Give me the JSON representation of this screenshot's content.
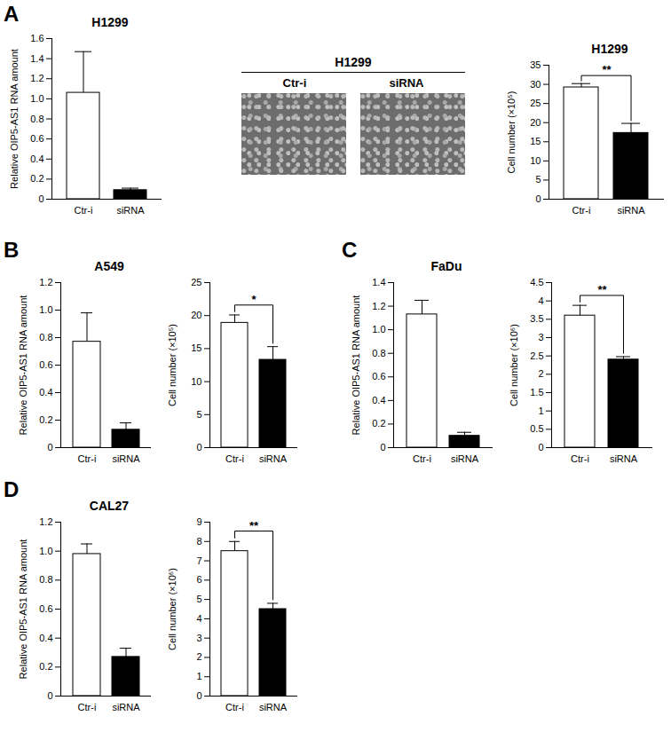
{
  "images": {
    "title": "H1299",
    "labels": [
      "Ctr-i",
      "siRNA"
    ]
  },
  "chart_data": [
    {
      "panel": "A",
      "type": "bar",
      "title": "H1299",
      "categories": [
        "Ctr-i",
        "siRNA"
      ],
      "values": [
        1.06,
        0.09
      ],
      "errors": [
        0.41,
        0.02
      ],
      "colors": [
        "#ffffff",
        "#000000"
      ],
      "y_label": "Relative OIP5-AS1 RNA amount",
      "ylim": [
        0,
        1.6
      ],
      "yticks": [
        0,
        0.2,
        0.4,
        0.6,
        0.8,
        {
          "value": 1,
          "label": "1.0"
        },
        1.2,
        1.4,
        1.6
      ]
    },
    {
      "type": "bar",
      "title": "H1299",
      "categories": [
        "Ctr-i",
        "siRNA"
      ],
      "values": [
        29.2,
        17.3
      ],
      "errors": [
        1.0,
        2.5
      ],
      "colors": [
        "#ffffff",
        "#000000"
      ],
      "y_label": "Cell number (×10⁵)",
      "ylim": [
        0,
        35
      ],
      "yticks": [
        0,
        5,
        10,
        15,
        20,
        25,
        30,
        35
      ],
      "significance": "**"
    },
    {
      "panel": "B",
      "type": "bar",
      "title": "A549",
      "categories": [
        "Ctr-i",
        "siRNA"
      ],
      "values": [
        0.77,
        0.13
      ],
      "errors": [
        0.21,
        0.05
      ],
      "colors": [
        "#ffffff",
        "#000000"
      ],
      "y_label": "Relative OIP5-AS1 RNA amount",
      "ylim": [
        0,
        1.2
      ],
      "yticks": [
        0,
        0.2,
        0.4,
        0.6,
        0.8,
        {
          "value": 1,
          "label": "1.0"
        },
        1.2
      ]
    },
    {
      "type": "bar",
      "title": "",
      "categories": [
        "Ctr-i",
        "siRNA"
      ],
      "values": [
        18.9,
        13.3
      ],
      "errors": [
        1.2,
        2.0
      ],
      "colors": [
        "#ffffff",
        "#000000"
      ],
      "y_label": "Cell number (×10⁵)",
      "ylim": [
        0,
        25
      ],
      "yticks": [
        0,
        5,
        10,
        15,
        20,
        25
      ],
      "significance": "*"
    },
    {
      "panel": "C",
      "type": "bar",
      "title": "FaDu",
      "categories": [
        "Ctr-i",
        "siRNA"
      ],
      "values": [
        1.13,
        0.1
      ],
      "errors": [
        0.12,
        0.03
      ],
      "colors": [
        "#ffffff",
        "#000000"
      ],
      "y_label": "Relative OIP5-AS1 RNA amount",
      "ylim": [
        0,
        1.4
      ],
      "yticks": [
        0,
        0.2,
        0.4,
        0.6,
        0.8,
        {
          "value": 1,
          "label": "1.0"
        },
        1.2,
        1.4
      ]
    },
    {
      "type": "bar",
      "title": "",
      "categories": [
        "Ctr-i",
        "siRNA"
      ],
      "values": [
        3.6,
        2.4
      ],
      "errors": [
        0.28,
        0.08
      ],
      "colors": [
        "#ffffff",
        "#000000"
      ],
      "y_label": "Cell number (×10⁶)",
      "ylim": [
        0,
        4.5
      ],
      "yticks": [
        0,
        0.5,
        1,
        1.5,
        2,
        2.5,
        3,
        3.5,
        4,
        4.5
      ],
      "significance": "**"
    },
    {
      "panel": "D",
      "type": "bar",
      "title": "CAL27",
      "categories": [
        "Ctr-i",
        "siRNA"
      ],
      "values": [
        0.98,
        0.27
      ],
      "errors": [
        0.07,
        0.06
      ],
      "colors": [
        "#ffffff",
        "#000000"
      ],
      "y_label": "Relative OIP5-AS1 RNA amount",
      "ylim": [
        0,
        1.2
      ],
      "yticks": [
        0,
        0.2,
        0.4,
        0.6,
        0.8,
        {
          "value": 1,
          "label": "1.0"
        },
        1.2
      ]
    },
    {
      "type": "bar",
      "title": "",
      "categories": [
        "Ctr-i",
        "siRNA"
      ],
      "values": [
        7.5,
        4.5
      ],
      "errors": [
        0.5,
        0.3
      ],
      "colors": [
        "#ffffff",
        "#000000"
      ],
      "y_label": "Cell number (×10⁶)",
      "ylim": [
        0,
        9
      ],
      "yticks": [
        0,
        1,
        2,
        3,
        4,
        5,
        6,
        7,
        8,
        9
      ],
      "significance": "**"
    }
  ]
}
